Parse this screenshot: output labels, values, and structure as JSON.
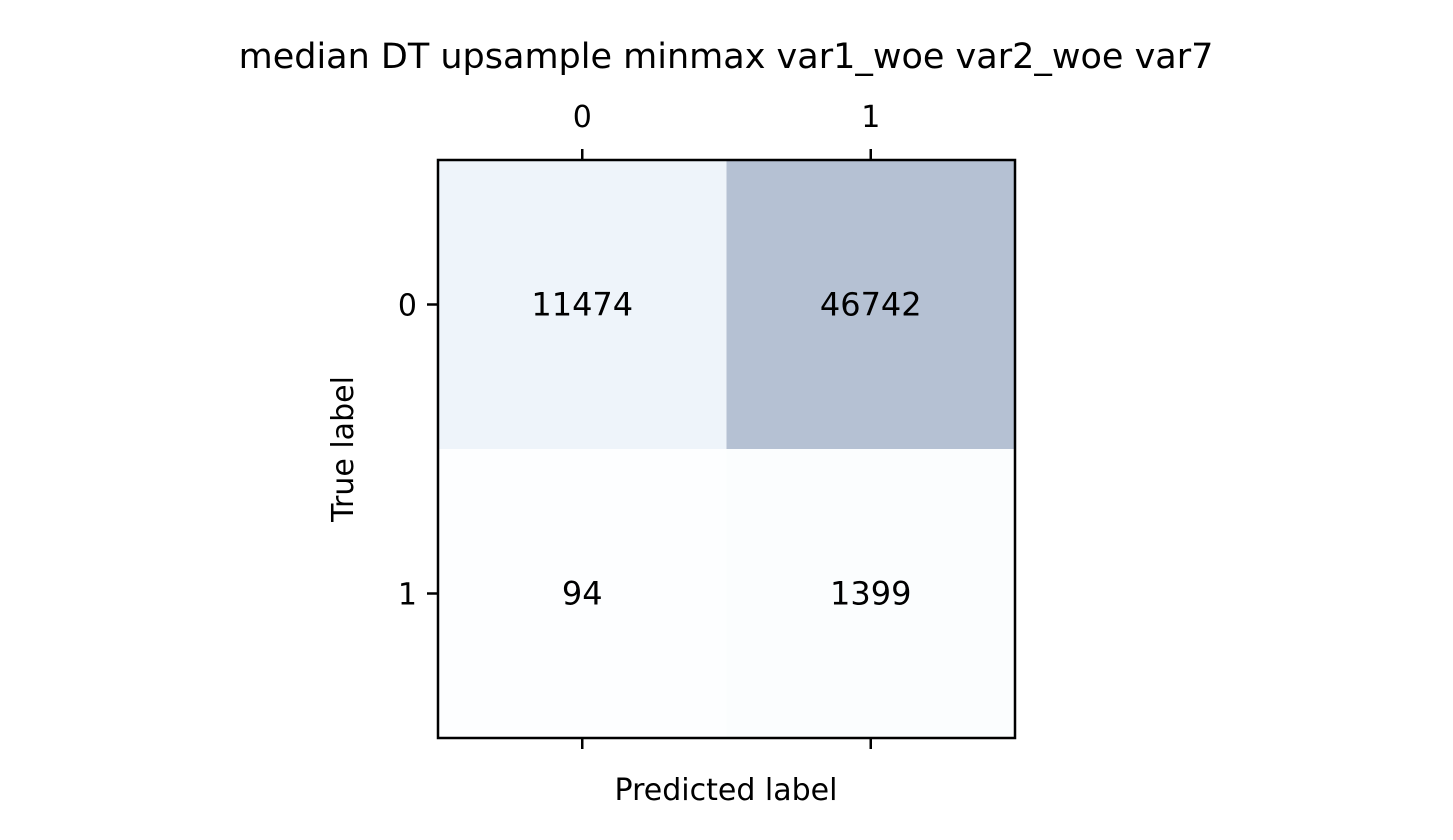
{
  "chart_data": {
    "type": "heatmap",
    "title": "median DT upsample minmax var1_woe var2_woe var7",
    "xlabel": "Predicted label",
    "ylabel": "True label",
    "x_tick_labels": [
      "0",
      "1"
    ],
    "y_tick_labels": [
      "0",
      "1"
    ],
    "x_ticks_position": "top",
    "cell_labels": [
      [
        "11474",
        "46742"
      ],
      [
        "94",
        "1399"
      ]
    ],
    "values": [
      [
        11474,
        46742
      ],
      [
        94,
        1399
      ]
    ],
    "colormap": "Blues",
    "color_alpha": 0.3,
    "grid": false
  }
}
